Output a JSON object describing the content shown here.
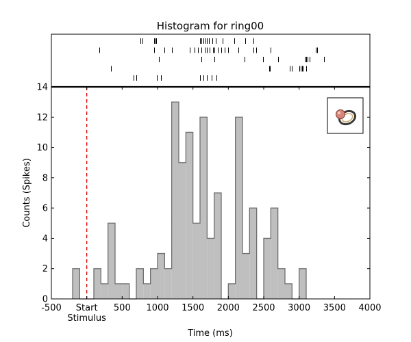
{
  "chart_data": {
    "type": "bar",
    "title": "Histogram for ring00",
    "xlabel": "Time (ms)",
    "ylabel": "Counts (Spikes)",
    "xlim": [
      -500,
      4000
    ],
    "ylim": [
      0,
      14
    ],
    "bin_width": 100,
    "x_ticks": [
      {
        "value": -500,
        "label": "-500"
      },
      {
        "value": 0,
        "label": "Start"
      },
      {
        "value": 500,
        "label": "500"
      },
      {
        "value": 1000,
        "label": "1000"
      },
      {
        "value": 1500,
        "label": "1500"
      },
      {
        "value": 2000,
        "label": "2000"
      },
      {
        "value": 2500,
        "label": "2500"
      },
      {
        "value": 3000,
        "label": "3000"
      },
      {
        "value": 3500,
        "label": "3500"
      },
      {
        "value": 4000,
        "label": "4000"
      }
    ],
    "x_sublabel": {
      "value": 0,
      "label": "Stimulus"
    },
    "y_ticks": [
      0,
      2,
      4,
      6,
      8,
      10,
      12,
      14
    ],
    "stimulus_line": {
      "x": 0,
      "color": "#e00000",
      "style": "dashed"
    },
    "bar_color": "#bfbfbf",
    "edge_color": "#6e6e6e",
    "bins": [
      {
        "start": -200,
        "count": 2
      },
      {
        "start": -100,
        "count": 0
      },
      {
        "start": 0,
        "count": 0
      },
      {
        "start": 100,
        "count": 2
      },
      {
        "start": 200,
        "count": 1
      },
      {
        "start": 300,
        "count": 5
      },
      {
        "start": 400,
        "count": 1
      },
      {
        "start": 500,
        "count": 1
      },
      {
        "start": 600,
        "count": 0
      },
      {
        "start": 700,
        "count": 2
      },
      {
        "start": 800,
        "count": 1
      },
      {
        "start": 900,
        "count": 2
      },
      {
        "start": 1000,
        "count": 3
      },
      {
        "start": 1100,
        "count": 2
      },
      {
        "start": 1200,
        "count": 13
      },
      {
        "start": 1300,
        "count": 9
      },
      {
        "start": 1400,
        "count": 11
      },
      {
        "start": 1500,
        "count": 5
      },
      {
        "start": 1600,
        "count": 12
      },
      {
        "start": 1700,
        "count": 4
      },
      {
        "start": 1800,
        "count": 7
      },
      {
        "start": 1900,
        "count": 0
      },
      {
        "start": 2000,
        "count": 1
      },
      {
        "start": 2100,
        "count": 12
      },
      {
        "start": 2200,
        "count": 3
      },
      {
        "start": 2300,
        "count": 6
      },
      {
        "start": 2400,
        "count": 0
      },
      {
        "start": 2500,
        "count": 4
      },
      {
        "start": 2600,
        "count": 6
      },
      {
        "start": 2700,
        "count": 2
      },
      {
        "start": 2800,
        "count": 1
      },
      {
        "start": 2900,
        "count": 0
      },
      {
        "start": 3000,
        "count": 2
      }
    ],
    "raster": {
      "trials": [
        [
          760,
          790,
          950,
          970,
          980,
          1600,
          1620,
          1650,
          1680,
          1700,
          1730,
          1770,
          1820,
          1920,
          2080,
          2240,
          2350
        ],
        [
          180,
          950,
          1100,
          1200,
          1450,
          1520,
          1570,
          1620,
          1680,
          1700,
          1740,
          1780,
          1800,
          1850,
          1900,
          1950,
          2000,
          2140,
          2350,
          2390,
          2600,
          3240,
          3250
        ],
        [
          1020,
          1620,
          1800,
          2230,
          2490,
          2700,
          3080,
          3100,
          3120,
          3150,
          3350
        ],
        [
          340,
          2580,
          2590,
          2870,
          2900,
          3000,
          3020,
          3040,
          3050,
          3100
        ],
        [
          660,
          700,
          990,
          1050,
          1600,
          1650,
          1700,
          1760,
          1830
        ]
      ]
    }
  }
}
